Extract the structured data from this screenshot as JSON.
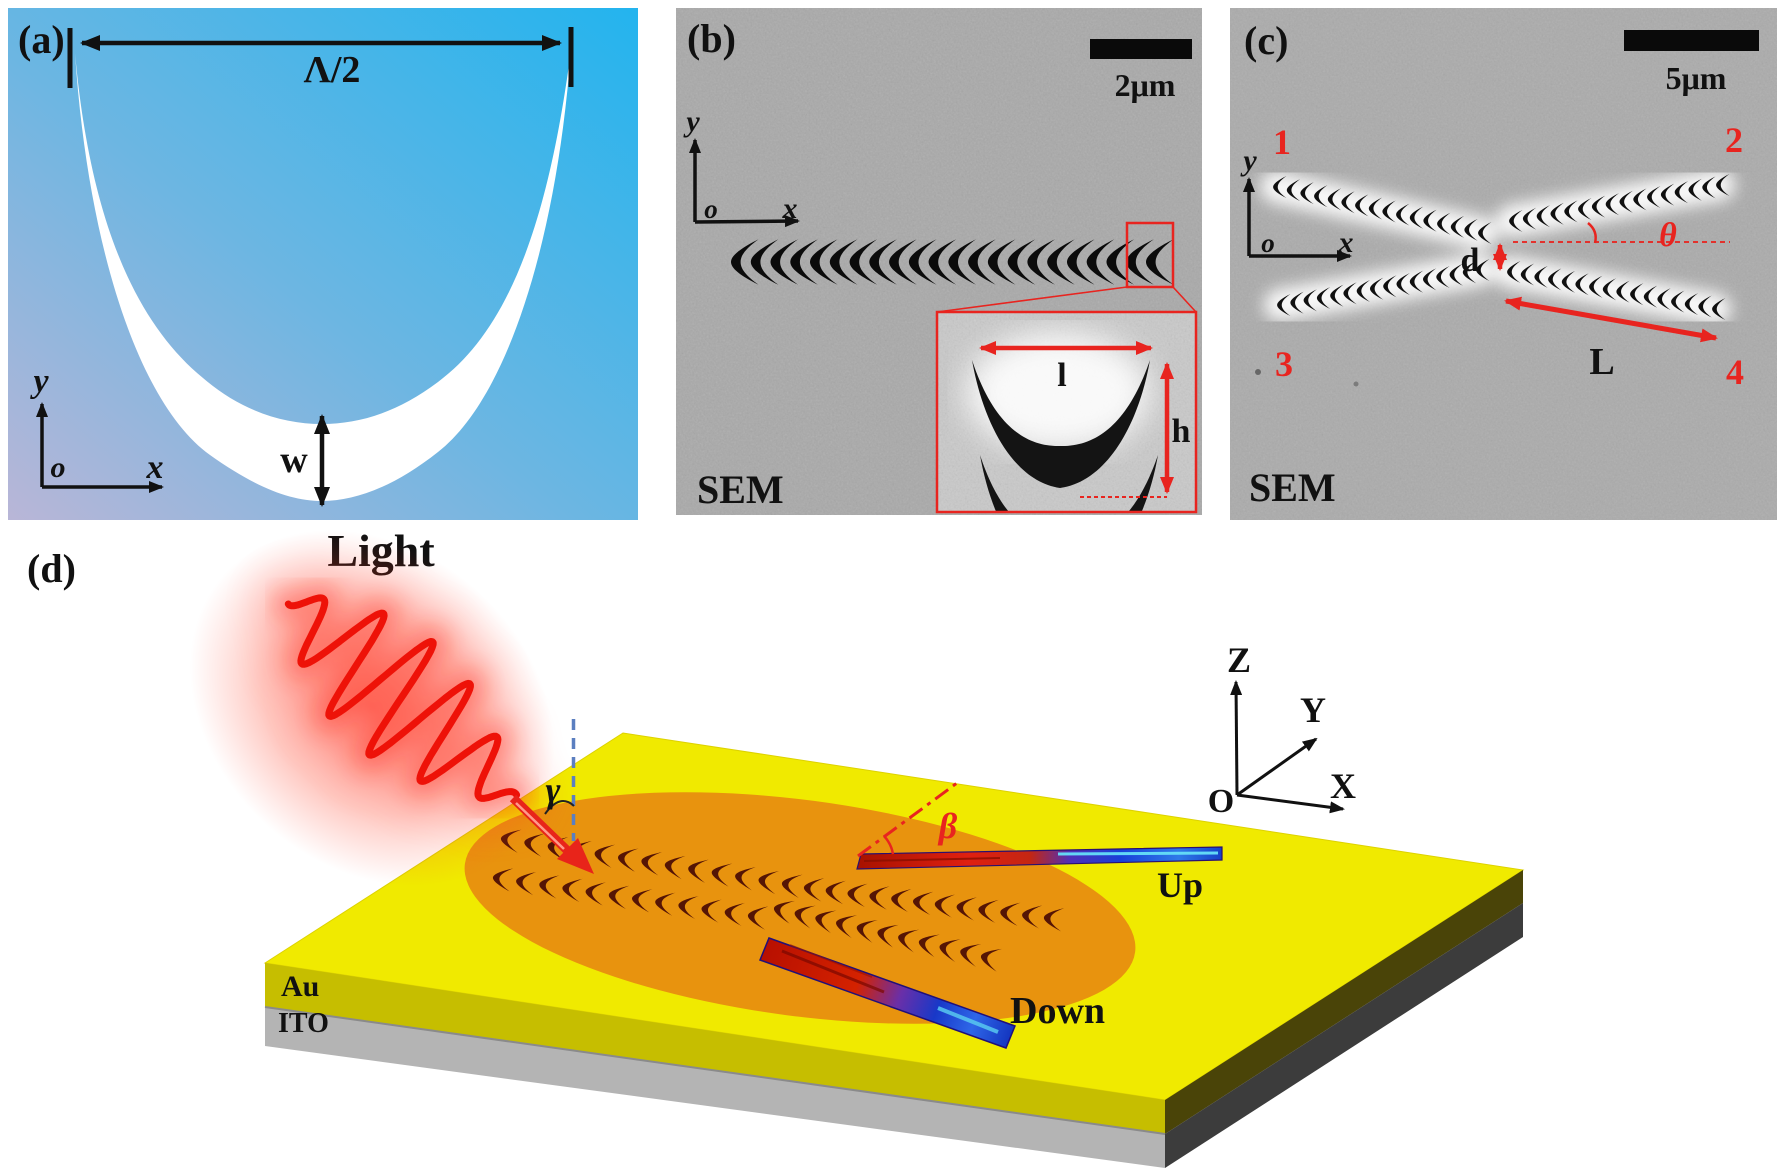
{
  "figure": {
    "panel_a": {
      "label": "(a)",
      "period_label": "Λ/2",
      "width_label": "w",
      "axes": {
        "x": "x",
        "y": "y",
        "o": "o"
      }
    },
    "panel_b": {
      "label": "(b)",
      "scale_bar": "2μm",
      "technique": "SEM",
      "axes": {
        "x": "x",
        "y": "y",
        "o": "o"
      },
      "inset": {
        "length_label": "l",
        "height_label": "h"
      }
    },
    "panel_c": {
      "label": "(c)",
      "scale_bar": "5μm",
      "technique": "SEM",
      "axes": {
        "x": "x",
        "y": "y",
        "o": "o"
      },
      "port_1": "1",
      "port_2": "2",
      "port_3": "3",
      "port_4": "4",
      "gap_label": "d",
      "angle_label": "θ",
      "length_label": "L"
    },
    "panel_d": {
      "label": "(d)",
      "light_label": "Light",
      "incident_angle_label": "γ",
      "bend_angle_label": "β",
      "up_label": "Up",
      "down_label": "Down",
      "layer_top_label": "Au",
      "layer_bottom_label": "ITO",
      "axes": {
        "o": "O",
        "x": "X",
        "y": "Y",
        "z": "Z"
      }
    },
    "colors": {
      "accent_red": "#e8241f",
      "panel_a_cyan": "#23b4ee",
      "panel_a_lavender": "#b9b6d7",
      "sem_gray": "#a9a9a9",
      "gold_top": "#f0ea00",
      "gold_front": "#c6be00",
      "orange_disk": "#e8930e",
      "ito_gray": "#b4b4b4",
      "crescent_brown": "#551505",
      "beam_blue": "#1b49d8"
    }
  }
}
